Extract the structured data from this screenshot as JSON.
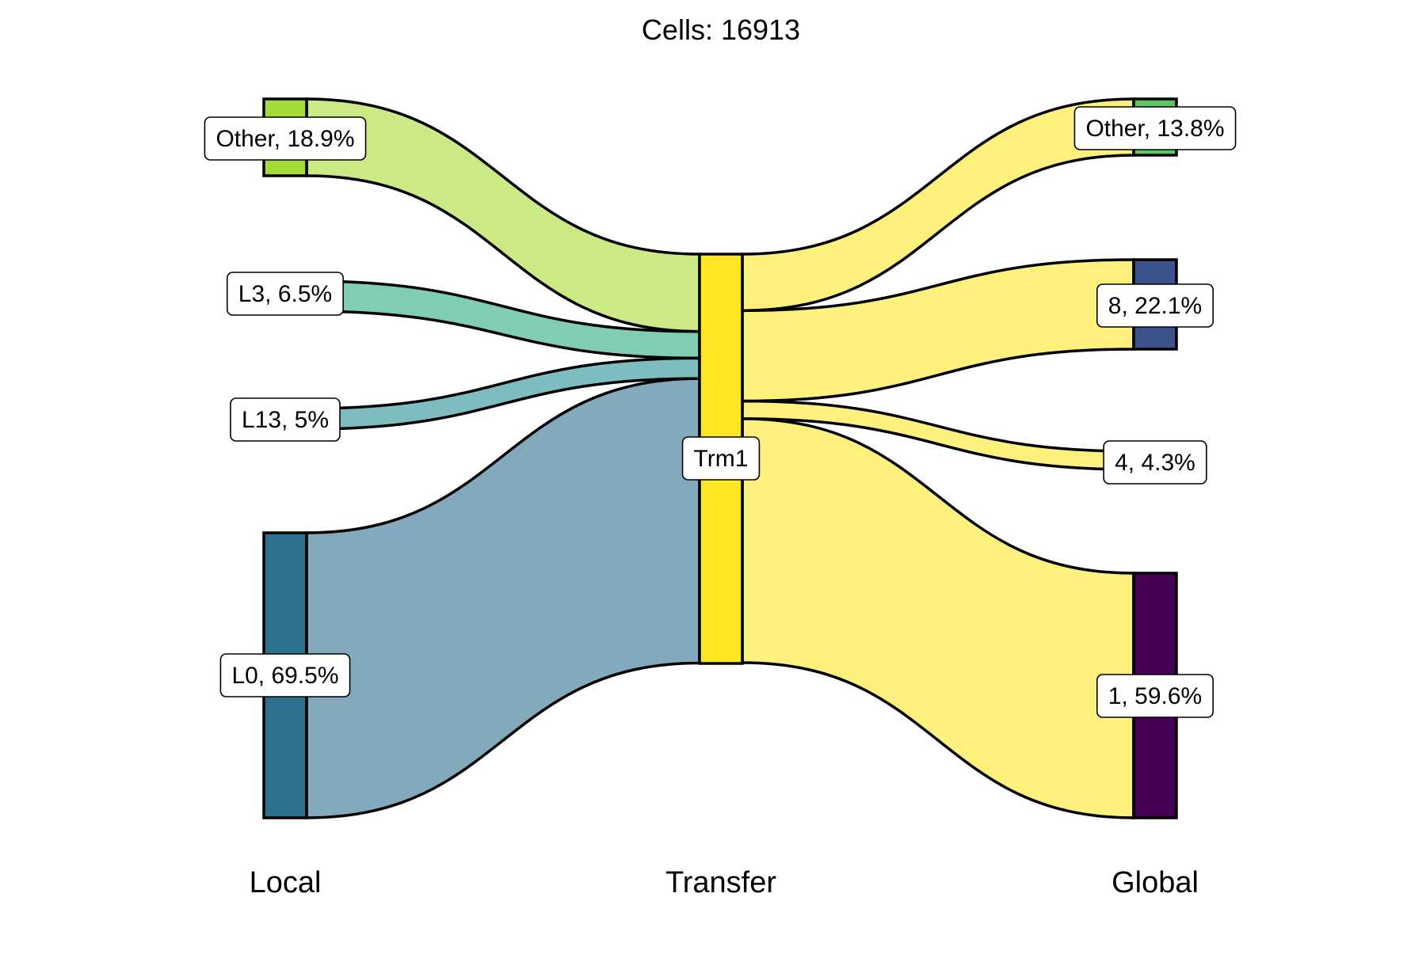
{
  "title": "Cells:  16913",
  "axes": [
    {
      "key": "local",
      "label": "Local"
    },
    {
      "key": "transfer",
      "label": "Transfer"
    },
    {
      "key": "global",
      "label": "Global"
    }
  ],
  "total_cells": 16913,
  "nodes": {
    "local": [
      {
        "id": "local-other",
        "label": "Other, 18.9%",
        "percent": 18.9,
        "color": "#A5DB36",
        "flow_color": "#CBEA86"
      },
      {
        "id": "local-l3",
        "label": "L3, 6.5%",
        "percent": 6.5,
        "color": "#4AC16D",
        "flow_color": "#7FCDB2"
      },
      {
        "id": "local-l13",
        "label": "L13, 5%",
        "percent": 5.0,
        "color": "#1FA187",
        "flow_color": "#7DBDBF"
      },
      {
        "id": "local-l0",
        "label": "L0, 69.5%",
        "percent": 69.5,
        "color": "#2D718E",
        "flow_color": "#82A9BC"
      }
    ],
    "transfer": [
      {
        "id": "transfer-trm1",
        "label": "Trm1",
        "percent": 100,
        "color": "#FDE725",
        "flow_color": "#FEF07C"
      }
    ],
    "global": [
      {
        "id": "global-other",
        "label": "Other, 13.8%",
        "percent": 13.8,
        "color": "#5DC863"
      },
      {
        "id": "global-8",
        "label": "8, 22.1%",
        "percent": 22.1,
        "color": "#3B528B"
      },
      {
        "id": "global-4",
        "label": "4, 4.3%",
        "percent": 4.3,
        "color": "#21908C"
      },
      {
        "id": "global-1",
        "label": "1, 59.6%",
        "percent": 59.6,
        "color": "#440154"
      }
    ]
  }
}
